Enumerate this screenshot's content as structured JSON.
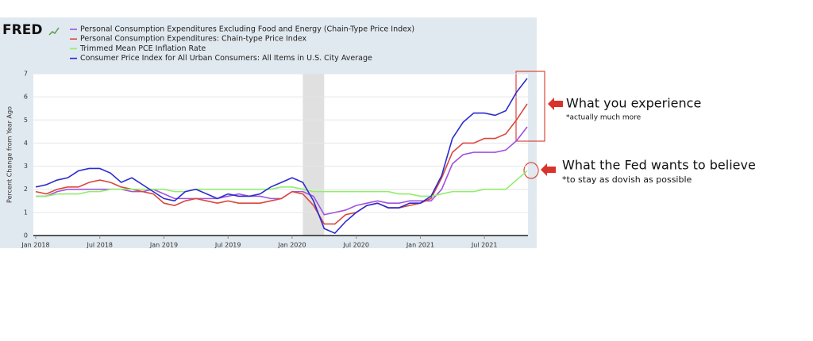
{
  "chart_data": {
    "type": "line",
    "logo": "FRED",
    "y_label": "Percent Change from Year Ago",
    "x": [
      "2018-01",
      "2018-02",
      "2018-03",
      "2018-04",
      "2018-05",
      "2018-06",
      "2018-07",
      "2018-08",
      "2018-09",
      "2018-10",
      "2018-11",
      "2018-12",
      "2019-01",
      "2019-02",
      "2019-03",
      "2019-04",
      "2019-05",
      "2019-06",
      "2019-07",
      "2019-08",
      "2019-09",
      "2019-10",
      "2019-11",
      "2019-12",
      "2020-01",
      "2020-02",
      "2020-03",
      "2020-04",
      "2020-05",
      "2020-06",
      "2020-07",
      "2020-08",
      "2020-09",
      "2020-10",
      "2020-11",
      "2020-12",
      "2021-01",
      "2021-02",
      "2021-03",
      "2021-04",
      "2021-05",
      "2021-06",
      "2021-07",
      "2021-08",
      "2021-09",
      "2021-10",
      "2021-11"
    ],
    "series": [
      {
        "name": "Personal Consumption Expenditures Excluding Food and Energy (Chain-Type Price Index)",
        "color": "#a052e0",
        "values": [
          1.7,
          1.7,
          1.9,
          2.0,
          2.0,
          2.0,
          2.0,
          2.0,
          2.0,
          1.9,
          1.9,
          2.0,
          1.8,
          1.6,
          1.6,
          1.6,
          1.6,
          1.6,
          1.7,
          1.8,
          1.7,
          1.7,
          1.6,
          1.6,
          1.9,
          1.9,
          1.7,
          0.9,
          1.0,
          1.1,
          1.3,
          1.4,
          1.5,
          1.4,
          1.4,
          1.5,
          1.5,
          1.5,
          2.0,
          3.1,
          3.5,
          3.6,
          3.6,
          3.6,
          3.7,
          4.1,
          4.7
        ]
      },
      {
        "name": "Personal Consumption Expenditures: Chain-type Price Index",
        "color": "#d9483b",
        "values": [
          1.9,
          1.8,
          2.0,
          2.1,
          2.1,
          2.3,
          2.4,
          2.3,
          2.1,
          2.0,
          1.9,
          1.8,
          1.4,
          1.3,
          1.5,
          1.6,
          1.5,
          1.4,
          1.5,
          1.4,
          1.4,
          1.4,
          1.5,
          1.6,
          1.9,
          1.8,
          1.3,
          0.5,
          0.5,
          0.9,
          1.0,
          1.3,
          1.4,
          1.2,
          1.2,
          1.3,
          1.4,
          1.6,
          2.5,
          3.6,
          4.0,
          4.0,
          4.2,
          4.2,
          4.4,
          5.0,
          5.7
        ]
      },
      {
        "name": "Trimmed Mean PCE Inflation Rate",
        "color": "#90ee6a",
        "values": [
          1.7,
          1.7,
          1.8,
          1.8,
          1.8,
          1.9,
          1.9,
          2.0,
          2.0,
          2.0,
          2.0,
          2.0,
          2.0,
          1.9,
          1.9,
          2.0,
          2.0,
          2.0,
          2.0,
          2.0,
          2.0,
          2.0,
          2.0,
          2.1,
          2.1,
          2.0,
          1.9,
          1.9,
          1.9,
          1.9,
          1.9,
          1.9,
          1.9,
          1.9,
          1.8,
          1.8,
          1.7,
          1.7,
          1.8,
          1.9,
          1.9,
          1.9,
          2.0,
          2.0,
          2.0,
          2.4,
          2.8
        ]
      },
      {
        "name": "Consumer Price Index for All Urban Consumers: All Items in U.S. City Average",
        "color": "#2b2bd0",
        "values": [
          2.1,
          2.2,
          2.4,
          2.5,
          2.8,
          2.9,
          2.9,
          2.7,
          2.3,
          2.5,
          2.2,
          1.9,
          1.6,
          1.5,
          1.9,
          2.0,
          1.8,
          1.6,
          1.8,
          1.7,
          1.7,
          1.8,
          2.1,
          2.3,
          2.5,
          2.3,
          1.5,
          0.3,
          0.1,
          0.6,
          1.0,
          1.3,
          1.4,
          1.2,
          1.2,
          1.4,
          1.4,
          1.7,
          2.6,
          4.2,
          4.9,
          5.3,
          5.3,
          5.2,
          5.4,
          6.2,
          6.8
        ]
      }
    ],
    "recessions": [
      {
        "start": "2020-02",
        "end": "2020-04"
      }
    ],
    "ylim": [
      0,
      7
    ],
    "yticks": [
      0,
      1,
      2,
      3,
      4,
      5,
      6,
      7
    ],
    "xlim": [
      "2018-01",
      "2021-11"
    ],
    "xticks": [
      {
        "value": "2018-01",
        "label": "Jan 2018"
      },
      {
        "value": "2018-07",
        "label": "Jul 2018"
      },
      {
        "value": "2019-01",
        "label": "Jan 2019"
      },
      {
        "value": "2019-07",
        "label": "Jul 2019"
      },
      {
        "value": "2020-01",
        "label": "Jan 2020"
      },
      {
        "value": "2020-07",
        "label": "Jul 2020"
      },
      {
        "value": "2021-01",
        "label": "Jan 2021"
      },
      {
        "value": "2021-07",
        "label": "Jul 2021"
      }
    ],
    "annotations": [
      {
        "text": "What you experience",
        "note": "*actually much more"
      },
      {
        "text": "What the Fed wants to believe",
        "note": "*to stay as dovish as possible"
      }
    ]
  }
}
